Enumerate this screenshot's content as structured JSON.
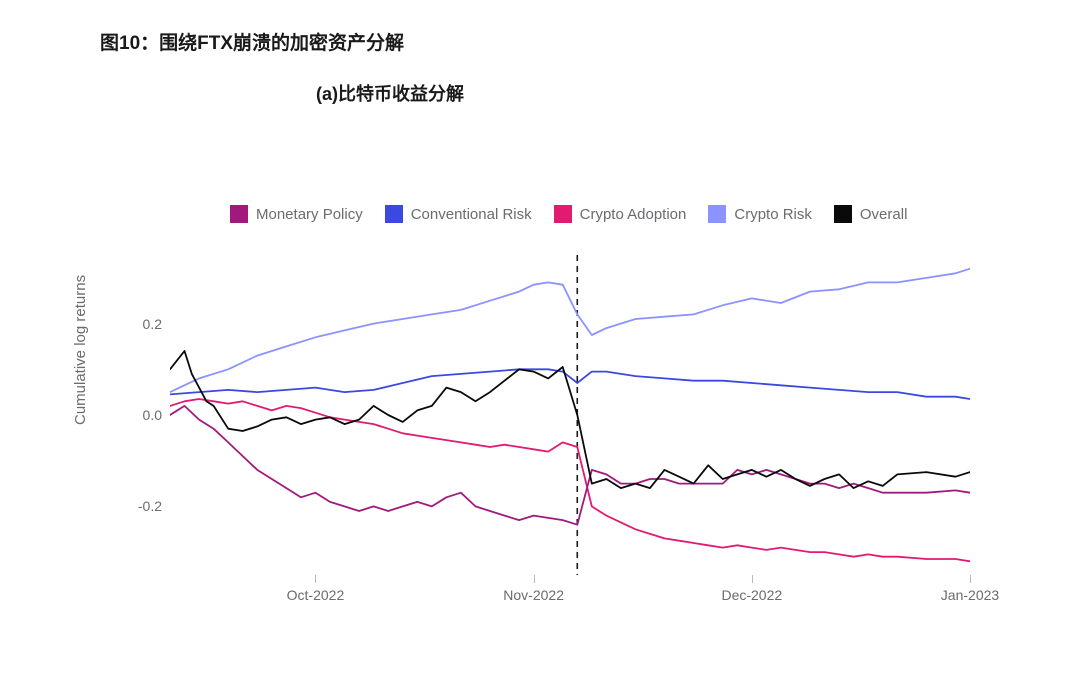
{
  "title": "图10：围绕FTX崩溃的加密资产分解",
  "subtitle": "(a)比特币收益分解",
  "chart": {
    "type": "line",
    "background_color": "#ffffff",
    "ylabel": "Cumulative log returns",
    "label_color": "#6b6b70",
    "label_fontsize": 15,
    "tick_fontsize": 14,
    "ylim": [
      -0.35,
      0.35
    ],
    "yticks": [
      -0.2,
      0.0,
      0.2
    ],
    "ytick_labels": [
      "-0.2",
      "0.0",
      "0.2"
    ],
    "x_index_range": [
      0,
      110
    ],
    "xticks": [
      20,
      50,
      80,
      110
    ],
    "xtick_labels": [
      "Oct-2022",
      "Nov-2022",
      "Dec-2022",
      "Jan-2023"
    ],
    "vertical_marker_x": 56,
    "vertical_marker_style": "dashed",
    "vertical_marker_color": "#1a1a1a",
    "line_width": 1.8,
    "legend": [
      {
        "label": "Monetary Policy",
        "color": "#a01a7d"
      },
      {
        "label": "Conventional Risk",
        "color": "#3b49e0"
      },
      {
        "label": "Crypto Adoption",
        "color": "#e21a72"
      },
      {
        "label": "Crypto Risk",
        "color": "#8a93ff"
      },
      {
        "label": "Overall",
        "color": "#0a0a0a"
      }
    ],
    "series": {
      "monetary_policy": {
        "color": "#a01a7d",
        "x": [
          0,
          2,
          4,
          6,
          8,
          10,
          12,
          14,
          16,
          18,
          20,
          22,
          24,
          26,
          28,
          30,
          32,
          34,
          36,
          38,
          40,
          42,
          44,
          46,
          48,
          50,
          52,
          54,
          56,
          58,
          60,
          62,
          64,
          66,
          68,
          70,
          72,
          74,
          76,
          78,
          80,
          82,
          84,
          86,
          88,
          90,
          92,
          94,
          96,
          98,
          100,
          104,
          108,
          110
        ],
        "y": [
          0.0,
          0.02,
          -0.01,
          -0.03,
          -0.06,
          -0.09,
          -0.12,
          -0.14,
          -0.16,
          -0.18,
          -0.17,
          -0.19,
          -0.2,
          -0.21,
          -0.2,
          -0.21,
          -0.2,
          -0.19,
          -0.2,
          -0.18,
          -0.17,
          -0.2,
          -0.21,
          -0.22,
          -0.23,
          -0.22,
          -0.225,
          -0.23,
          -0.24,
          -0.12,
          -0.13,
          -0.15,
          -0.15,
          -0.14,
          -0.14,
          -0.15,
          -0.15,
          -0.15,
          -0.15,
          -0.12,
          -0.13,
          -0.12,
          -0.13,
          -0.14,
          -0.15,
          -0.15,
          -0.16,
          -0.15,
          -0.16,
          -0.17,
          -0.17,
          -0.17,
          -0.165,
          -0.17
        ]
      },
      "conventional_risk": {
        "color": "#3b49e0",
        "x": [
          0,
          4,
          8,
          12,
          16,
          20,
          24,
          28,
          32,
          36,
          40,
          44,
          48,
          50,
          52,
          54,
          56,
          58,
          60,
          64,
          68,
          72,
          76,
          80,
          84,
          88,
          92,
          96,
          100,
          104,
          108,
          110
        ],
        "y": [
          0.045,
          0.05,
          0.055,
          0.05,
          0.055,
          0.06,
          0.05,
          0.055,
          0.07,
          0.085,
          0.09,
          0.095,
          0.1,
          0.1,
          0.1,
          0.095,
          0.07,
          0.095,
          0.095,
          0.085,
          0.08,
          0.075,
          0.075,
          0.07,
          0.065,
          0.06,
          0.055,
          0.05,
          0.05,
          0.04,
          0.04,
          0.035
        ]
      },
      "crypto_adoption": {
        "color": "#e21a72",
        "x": [
          0,
          2,
          4,
          6,
          8,
          10,
          12,
          14,
          16,
          18,
          20,
          22,
          24,
          26,
          28,
          30,
          32,
          34,
          36,
          38,
          40,
          42,
          44,
          46,
          48,
          50,
          52,
          54,
          56,
          58,
          60,
          62,
          64,
          66,
          68,
          70,
          72,
          74,
          76,
          78,
          80,
          82,
          84,
          86,
          88,
          90,
          92,
          94,
          96,
          98,
          100,
          104,
          108,
          110
        ],
        "y": [
          0.02,
          0.03,
          0.035,
          0.03,
          0.025,
          0.03,
          0.02,
          0.01,
          0.02,
          0.015,
          0.005,
          -0.005,
          -0.01,
          -0.015,
          -0.02,
          -0.03,
          -0.04,
          -0.045,
          -0.05,
          -0.055,
          -0.06,
          -0.065,
          -0.07,
          -0.065,
          -0.07,
          -0.075,
          -0.08,
          -0.06,
          -0.07,
          -0.2,
          -0.22,
          -0.235,
          -0.25,
          -0.26,
          -0.27,
          -0.275,
          -0.28,
          -0.285,
          -0.29,
          -0.285,
          -0.29,
          -0.295,
          -0.29,
          -0.295,
          -0.3,
          -0.3,
          -0.305,
          -0.31,
          -0.305,
          -0.31,
          -0.31,
          -0.315,
          -0.315,
          -0.32
        ]
      },
      "crypto_risk": {
        "color": "#8a93ff",
        "x": [
          0,
          4,
          8,
          12,
          16,
          20,
          24,
          28,
          32,
          36,
          40,
          44,
          48,
          50,
          52,
          54,
          56,
          58,
          60,
          64,
          68,
          72,
          76,
          80,
          84,
          88,
          92,
          96,
          100,
          104,
          108,
          110
        ],
        "y": [
          0.05,
          0.08,
          0.1,
          0.13,
          0.15,
          0.17,
          0.185,
          0.2,
          0.21,
          0.22,
          0.23,
          0.25,
          0.27,
          0.285,
          0.29,
          0.285,
          0.22,
          0.175,
          0.19,
          0.21,
          0.215,
          0.22,
          0.24,
          0.255,
          0.245,
          0.27,
          0.275,
          0.29,
          0.29,
          0.3,
          0.31,
          0.32
        ]
      },
      "overall": {
        "color": "#0a0a0a",
        "x": [
          0,
          1,
          2,
          3,
          4,
          5,
          6,
          8,
          10,
          12,
          14,
          16,
          18,
          20,
          22,
          24,
          26,
          28,
          30,
          32,
          34,
          36,
          38,
          40,
          42,
          44,
          46,
          48,
          50,
          52,
          54,
          56,
          58,
          60,
          62,
          64,
          66,
          68,
          70,
          72,
          74,
          76,
          78,
          80,
          82,
          84,
          86,
          88,
          90,
          92,
          94,
          96,
          98,
          100,
          104,
          108,
          110
        ],
        "y": [
          0.1,
          0.12,
          0.14,
          0.09,
          0.06,
          0.03,
          0.02,
          -0.03,
          -0.035,
          -0.025,
          -0.01,
          -0.005,
          -0.02,
          -0.01,
          -0.005,
          -0.02,
          -0.01,
          0.02,
          0.0,
          -0.015,
          0.01,
          0.02,
          0.06,
          0.05,
          0.03,
          0.05,
          0.075,
          0.1,
          0.095,
          0.08,
          0.105,
          0.0,
          -0.15,
          -0.14,
          -0.16,
          -0.15,
          -0.16,
          -0.12,
          -0.135,
          -0.15,
          -0.11,
          -0.14,
          -0.13,
          -0.12,
          -0.135,
          -0.12,
          -0.14,
          -0.155,
          -0.14,
          -0.13,
          -0.16,
          -0.145,
          -0.155,
          -0.13,
          -0.125,
          -0.135,
          -0.125
        ]
      }
    }
  }
}
